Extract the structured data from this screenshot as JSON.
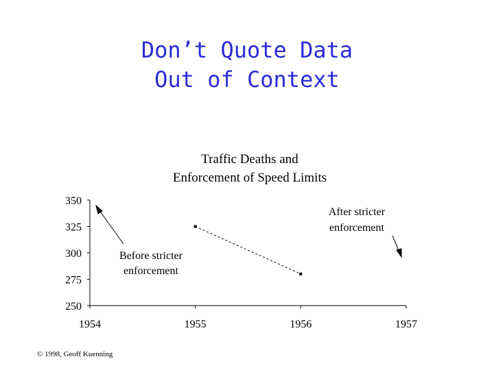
{
  "slide": {
    "title": [
      "Don’t Quote Data",
      "Out of Context"
    ],
    "footer": "© 1998, Geoff Kuenning"
  },
  "chart_data": {
    "type": "line",
    "title": [
      "Traffic Deaths and",
      "Enforcement of Speed Limits"
    ],
    "x": [
      1955,
      1956
    ],
    "values": [
      325,
      280
    ],
    "color": "#000000",
    "xlim": [
      1954,
      1957
    ],
    "xticks": [
      1954,
      1955,
      1956,
      1957
    ],
    "ylim": [
      250,
      350
    ],
    "yticks": [
      250,
      275,
      300,
      325,
      350
    ],
    "annotations": [
      [
        "Before stricter",
        "enforcement"
      ],
      [
        "After stricter",
        "enforcement"
      ]
    ]
  }
}
